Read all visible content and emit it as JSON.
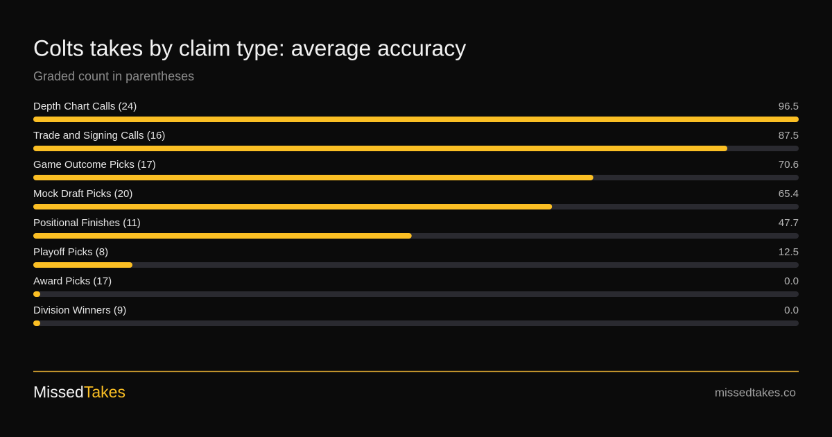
{
  "chart_data": {
    "type": "bar",
    "orientation": "horizontal",
    "title": "Colts takes by claim type: average accuracy",
    "subtitle": "Graded count in parentheses",
    "categories": [
      "Depth Chart Calls (24)",
      "Trade and Signing Calls (16)",
      "Game Outcome Picks (17)",
      "Mock Draft Picks (20)",
      "Positional Finishes (11)",
      "Playoff Picks (8)",
      "Award Picks (17)",
      "Division Winners (9)"
    ],
    "values": [
      96.5,
      87.5,
      70.6,
      65.4,
      47.7,
      12.5,
      0,
      0
    ],
    "value_labels": [
      "96.5",
      "87.5",
      "70.6",
      "65.4",
      "47.7",
      "12.5",
      "0.0",
      "0.0"
    ],
    "color": "#fbbf24",
    "track_color": "#2a2a30"
  },
  "footer": {
    "brand_first": "Missed",
    "brand_second": "Takes",
    "url": "missedtakes.co"
  }
}
